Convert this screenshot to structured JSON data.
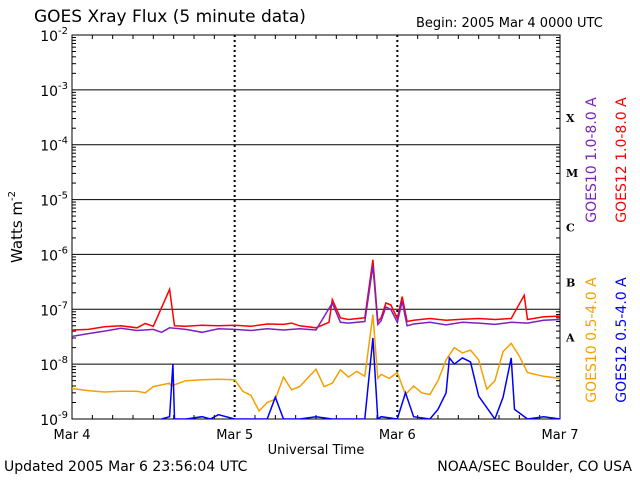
{
  "chart_data": {
    "type": "line",
    "title": "GOES Xray Flux (5 minute data)",
    "begin_label": "Begin:  2005 Mar 4 0000 UTC",
    "xlabel": "Universal Time",
    "ylabel": "Watts m",
    "ylabel_exp": "-2",
    "y_scale": "log",
    "ylim": [
      1e-09,
      0.01
    ],
    "y_ticks": [
      {
        "value": 0.01,
        "base": "10",
        "exp": "-2"
      },
      {
        "value": 0.001,
        "base": "10",
        "exp": "-3"
      },
      {
        "value": 0.0001,
        "base": "10",
        "exp": "-4"
      },
      {
        "value": 1e-05,
        "base": "10",
        "exp": "-5"
      },
      {
        "value": 1e-06,
        "base": "10",
        "exp": "-6"
      },
      {
        "value": 1e-07,
        "base": "10",
        "exp": "-7"
      },
      {
        "value": 1e-08,
        "base": "10",
        "exp": "-8"
      },
      {
        "value": 1e-09,
        "base": "10",
        "exp": "-9"
      }
    ],
    "x_unit": "days since 2005 Mar 4 0000 UTC",
    "xlim": [
      0,
      3
    ],
    "x_ticks": [
      {
        "x": 0,
        "label": "Mar 4"
      },
      {
        "x": 1,
        "label": "Mar 5"
      },
      {
        "x": 2,
        "label": "Mar 6"
      },
      {
        "x": 3,
        "label": "Mar 7"
      }
    ],
    "flare_classes": [
      {
        "label": "X",
        "value": 0.00032
      },
      {
        "label": "M",
        "value": 3.2e-05
      },
      {
        "label": "C",
        "value": 3.2e-06
      },
      {
        "label": "B",
        "value": 3.2e-07
      },
      {
        "label": "A",
        "value": 3.2e-08
      }
    ],
    "grid": {
      "horizontal_at_decades": true,
      "day_dividers": "dashed"
    },
    "legend_placement": "right-vertical",
    "series": [
      {
        "name": "GOES12 1.0-8.0 A",
        "color": "#ff0000",
        "points": [
          [
            0,
            4.2e-08
          ],
          [
            0.1,
            4.3e-08
          ],
          [
            0.2,
            4.8e-08
          ],
          [
            0.3,
            5e-08
          ],
          [
            0.4,
            4.6e-08
          ],
          [
            0.45,
            5.5e-08
          ],
          [
            0.5,
            4.9e-08
          ],
          [
            0.6,
            2.3e-07
          ],
          [
            0.63,
            5e-08
          ],
          [
            0.7,
            4.9e-08
          ],
          [
            0.8,
            5.1e-08
          ],
          [
            0.9,
            5e-08
          ],
          [
            1.0,
            5.1e-08
          ],
          [
            1.1,
            4.9e-08
          ],
          [
            1.2,
            5.4e-08
          ],
          [
            1.3,
            5.3e-08
          ],
          [
            1.35,
            5.6e-08
          ],
          [
            1.4,
            5e-08
          ],
          [
            1.5,
            4.6e-08
          ],
          [
            1.58,
            5.8e-08
          ],
          [
            1.6,
            1.5e-07
          ],
          [
            1.65,
            7e-08
          ],
          [
            1.7,
            6.5e-08
          ],
          [
            1.8,
            7e-08
          ],
          [
            1.85,
            8e-07
          ],
          [
            1.88,
            6e-08
          ],
          [
            1.9,
            7e-08
          ],
          [
            1.93,
            1.3e-07
          ],
          [
            1.96,
            1.2e-07
          ],
          [
            2.0,
            6.8e-08
          ],
          [
            2.03,
            1.7e-07
          ],
          [
            2.06,
            6e-08
          ],
          [
            2.1,
            6.3e-08
          ],
          [
            2.2,
            6.8e-08
          ],
          [
            2.3,
            6.3e-08
          ],
          [
            2.4,
            6.6e-08
          ],
          [
            2.5,
            6.8e-08
          ],
          [
            2.6,
            6.5e-08
          ],
          [
            2.7,
            6.8e-08
          ],
          [
            2.78,
            1.8e-07
          ],
          [
            2.8,
            6.5e-08
          ],
          [
            2.9,
            7.3e-08
          ],
          [
            3.0,
            7.5e-08
          ]
        ]
      },
      {
        "name": "GOES10 1.0-8.0 A",
        "color": "#7f1fbf",
        "points": [
          [
            0,
            3.2e-08
          ],
          [
            0.1,
            3.6e-08
          ],
          [
            0.2,
            4e-08
          ],
          [
            0.3,
            4.5e-08
          ],
          [
            0.4,
            4.1e-08
          ],
          [
            0.5,
            4.3e-08
          ],
          [
            0.55,
            3.8e-08
          ],
          [
            0.6,
            4.6e-08
          ],
          [
            0.7,
            4.3e-08
          ],
          [
            0.8,
            3.8e-08
          ],
          [
            0.9,
            4.4e-08
          ],
          [
            1.0,
            4.3e-08
          ],
          [
            1.1,
            4.1e-08
          ],
          [
            1.2,
            4.4e-08
          ],
          [
            1.3,
            4.2e-08
          ],
          [
            1.4,
            4.4e-08
          ],
          [
            1.5,
            4.2e-08
          ],
          [
            1.6,
            1.3e-07
          ],
          [
            1.65,
            5.8e-08
          ],
          [
            1.7,
            5.6e-08
          ],
          [
            1.8,
            6e-08
          ],
          [
            1.85,
            6.2e-07
          ],
          [
            1.88,
            5.3e-08
          ],
          [
            1.9,
            6.2e-08
          ],
          [
            1.93,
            1.1e-07
          ],
          [
            1.96,
            1e-07
          ],
          [
            2.0,
            5.8e-08
          ],
          [
            2.03,
            1.4e-07
          ],
          [
            2.06,
            5e-08
          ],
          [
            2.1,
            5.4e-08
          ],
          [
            2.2,
            5.8e-08
          ],
          [
            2.3,
            5.2e-08
          ],
          [
            2.4,
            5.8e-08
          ],
          [
            2.5,
            5.6e-08
          ],
          [
            2.6,
            5.3e-08
          ],
          [
            2.7,
            5.8e-08
          ],
          [
            2.8,
            5.6e-08
          ],
          [
            2.9,
            6.3e-08
          ],
          [
            3.0,
            6.5e-08
          ]
        ]
      },
      {
        "name": "GOES10 0.5-4.0 A",
        "color": "#f5a000",
        "points": [
          [
            0,
            3.6e-09
          ],
          [
            0.1,
            3.3e-09
          ],
          [
            0.2,
            3.1e-09
          ],
          [
            0.3,
            3.2e-09
          ],
          [
            0.4,
            3.2e-09
          ],
          [
            0.45,
            3e-09
          ],
          [
            0.5,
            3.9e-09
          ],
          [
            0.6,
            4.5e-09
          ],
          [
            0.61,
            4e-09
          ],
          [
            0.7,
            5e-09
          ],
          [
            0.8,
            5.2e-09
          ],
          [
            0.9,
            5.3e-09
          ],
          [
            1.0,
            5.2e-09
          ],
          [
            1.05,
            3.2e-09
          ],
          [
            1.1,
            2.7e-09
          ],
          [
            1.15,
            1.4e-09
          ],
          [
            1.2,
            2e-09
          ],
          [
            1.25,
            2.3e-09
          ],
          [
            1.3,
            5.8e-09
          ],
          [
            1.35,
            3.4e-09
          ],
          [
            1.4,
            3.9e-09
          ],
          [
            1.5,
            8.1e-09
          ],
          [
            1.55,
            3.9e-09
          ],
          [
            1.6,
            4.5e-09
          ],
          [
            1.65,
            7.9e-09
          ],
          [
            1.7,
            5.8e-09
          ],
          [
            1.75,
            7.4e-09
          ],
          [
            1.8,
            6e-09
          ],
          [
            1.85,
            8e-08
          ],
          [
            1.88,
            5.5e-09
          ],
          [
            1.9,
            6.5e-09
          ],
          [
            1.95,
            5.5e-09
          ],
          [
            2.0,
            7e-09
          ],
          [
            2.05,
            2.8e-09
          ],
          [
            2.1,
            4e-09
          ],
          [
            2.15,
            3e-09
          ],
          [
            2.2,
            2.8e-09
          ],
          [
            2.25,
            5e-09
          ],
          [
            2.3,
            1.2e-08
          ],
          [
            2.35,
            2e-08
          ],
          [
            2.4,
            1.6e-08
          ],
          [
            2.45,
            1.8e-08
          ],
          [
            2.5,
            1.2e-08
          ],
          [
            2.55,
            3.5e-09
          ],
          [
            2.6,
            5e-09
          ],
          [
            2.65,
            1.7e-08
          ],
          [
            2.7,
            2.4e-08
          ],
          [
            2.75,
            1.4e-08
          ],
          [
            2.8,
            7e-09
          ],
          [
            2.9,
            6e-09
          ],
          [
            3.0,
            5.5e-09
          ]
        ]
      },
      {
        "name": "GOES12 0.5-4.0 A",
        "color": "#0000ff",
        "points": [
          [
            0.55,
            1e-09
          ],
          [
            0.6,
            1.1e-09
          ],
          [
            0.62,
            1e-08
          ],
          [
            0.63,
            1e-09
          ],
          [
            0.7,
            1e-09
          ],
          [
            0.8,
            1.1e-09
          ],
          [
            0.85,
            1e-09
          ],
          [
            0.9,
            1.2e-09
          ],
          [
            1.0,
            1e-09
          ],
          [
            1.2,
            1e-09
          ],
          [
            1.25,
            2.5e-09
          ],
          [
            1.3,
            1e-09
          ],
          [
            1.4,
            1e-09
          ],
          [
            1.5,
            1.1e-09
          ],
          [
            1.6,
            1e-09
          ],
          [
            1.8,
            1e-09
          ],
          [
            1.85,
            3e-08
          ],
          [
            1.88,
            1e-09
          ],
          [
            1.9,
            1.1e-09
          ],
          [
            2.0,
            1e-09
          ],
          [
            2.05,
            3e-09
          ],
          [
            2.1,
            1.1e-09
          ],
          [
            2.2,
            1e-09
          ],
          [
            2.25,
            1.5e-09
          ],
          [
            2.3,
            3e-09
          ],
          [
            2.32,
            1.3e-08
          ],
          [
            2.35,
            1e-08
          ],
          [
            2.4,
            1.3e-08
          ],
          [
            2.45,
            1.1e-08
          ],
          [
            2.5,
            2.6e-09
          ],
          [
            2.6,
            1e-09
          ],
          [
            2.65,
            2.5e-09
          ],
          [
            2.7,
            1.3e-08
          ],
          [
            2.72,
            1.5e-09
          ],
          [
            2.8,
            1e-09
          ],
          [
            2.9,
            1.1e-09
          ],
          [
            3.0,
            1e-09
          ]
        ]
      }
    ]
  },
  "footer": {
    "updated": "Updated 2005 Mar  6 23:56:04 UTC",
    "credit": "NOAA/SEC Boulder, CO USA"
  }
}
